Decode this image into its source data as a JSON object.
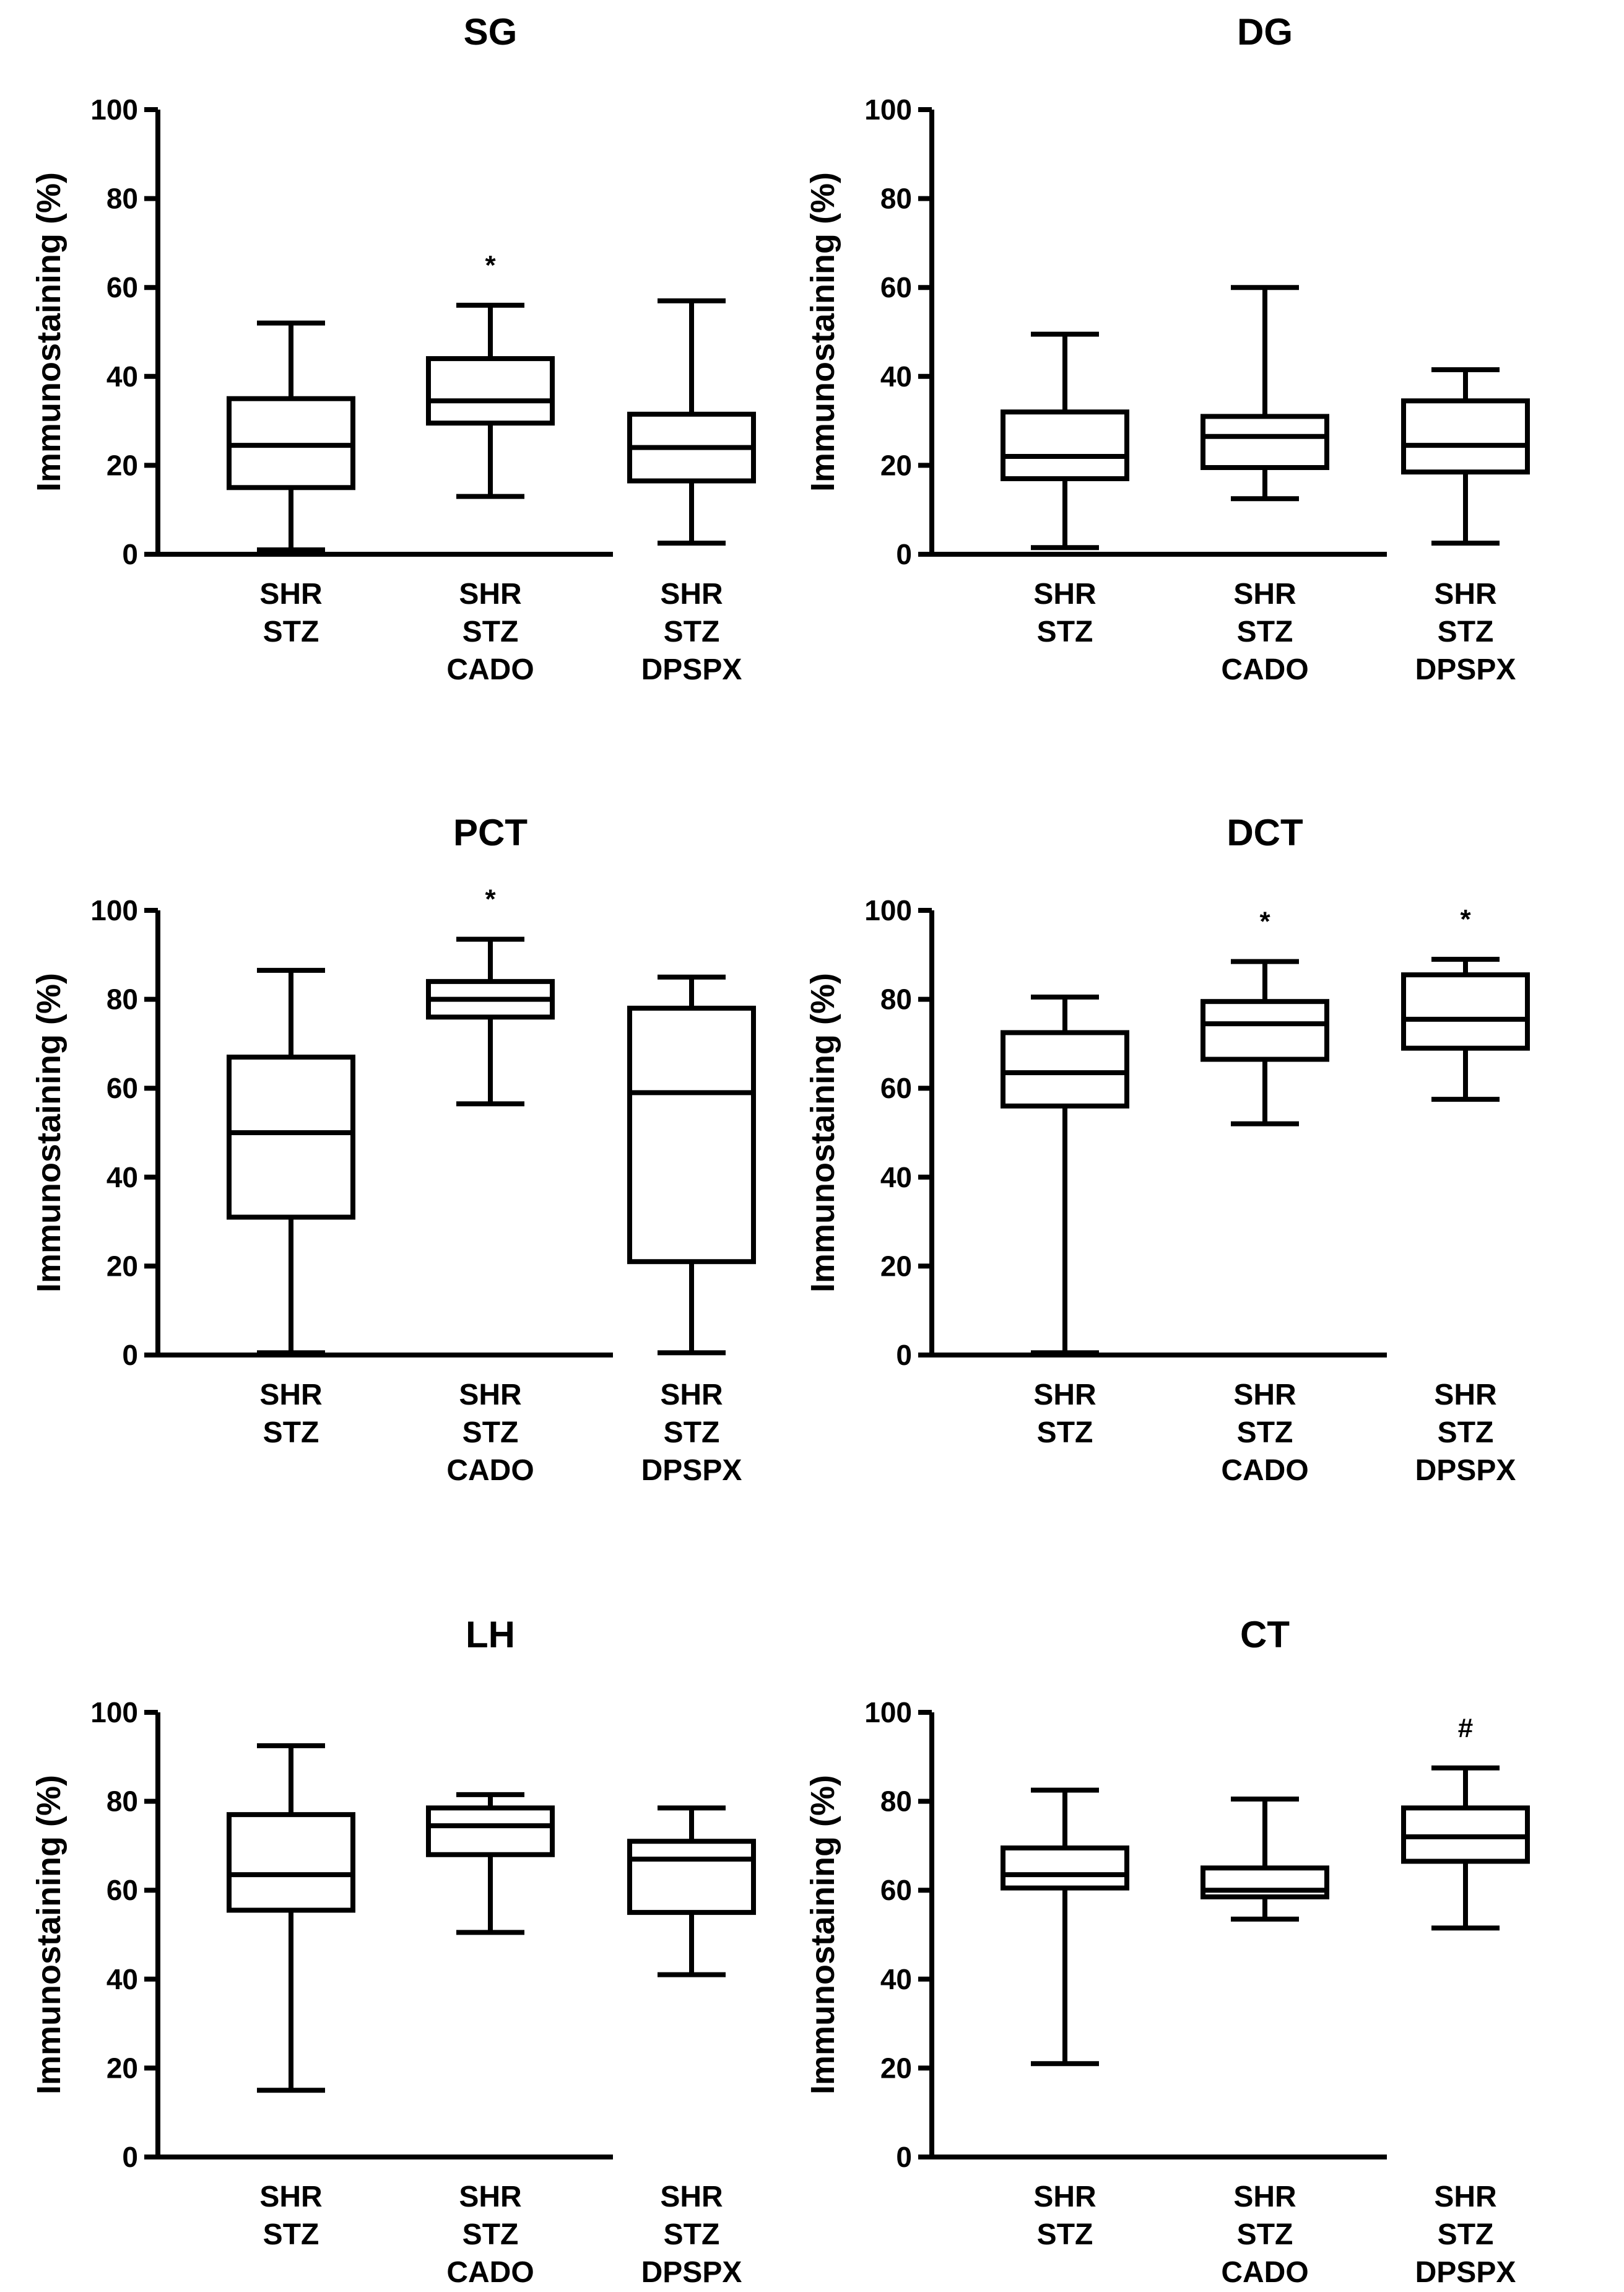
{
  "chart_data": [
    {
      "type": "boxplot",
      "title": "SG",
      "ylabel": "Immunostaining (%)",
      "ylim": [
        0,
        100
      ],
      "yticks": [
        0,
        20,
        40,
        60,
        80,
        100
      ],
      "categories": [
        [
          "SHR",
          "STZ"
        ],
        [
          "SHR",
          "STZ",
          "CADO"
        ],
        [
          "SHR",
          "STZ",
          "DPSPX"
        ]
      ],
      "boxes": [
        {
          "min": 1,
          "q1": 15,
          "median": 24.5,
          "q3": 35,
          "max": 52,
          "marker": ""
        },
        {
          "min": 13,
          "q1": 29.5,
          "median": 34.5,
          "q3": 44,
          "max": 56,
          "marker": "*"
        },
        {
          "min": 2.5,
          "q1": 16.5,
          "median": 24,
          "q3": 31.5,
          "max": 57,
          "marker": ""
        }
      ]
    },
    {
      "type": "boxplot",
      "title": "DG",
      "ylabel": "Immunostaining (%)",
      "ylim": [
        0,
        100
      ],
      "yticks": [
        0,
        20,
        40,
        60,
        80,
        100
      ],
      "categories": [
        [
          "SHR",
          "STZ"
        ],
        [
          "SHR",
          "STZ",
          "CADO"
        ],
        [
          "SHR",
          "STZ",
          "DPSPX"
        ]
      ],
      "boxes": [
        {
          "min": 1.5,
          "q1": 17,
          "median": 22,
          "q3": 32,
          "max": 49.5,
          "marker": ""
        },
        {
          "min": 12.5,
          "q1": 19.5,
          "median": 26.5,
          "q3": 31,
          "max": 60,
          "marker": ""
        },
        {
          "min": 2.5,
          "q1": 18.5,
          "median": 24.5,
          "q3": 34.5,
          "max": 41.5,
          "marker": ""
        }
      ]
    },
    {
      "type": "boxplot",
      "title": "PCT",
      "ylabel": "Immunostaining (%)",
      "ylim": [
        0,
        100
      ],
      "yticks": [
        0,
        20,
        40,
        60,
        80,
        100
      ],
      "categories": [
        [
          "SHR",
          "STZ"
        ],
        [
          "SHR",
          "STZ",
          "CADO"
        ],
        [
          "SHR",
          "STZ",
          "DPSPX"
        ]
      ],
      "boxes": [
        {
          "min": 0.5,
          "q1": 31,
          "median": 50,
          "q3": 67,
          "max": 86.5,
          "marker": ""
        },
        {
          "min": 56.5,
          "q1": 76,
          "median": 80,
          "q3": 84,
          "max": 93.5,
          "marker": "*"
        },
        {
          "min": 0.5,
          "q1": 21,
          "median": 59,
          "q3": 78,
          "max": 85,
          "marker": ""
        }
      ]
    },
    {
      "type": "boxplot",
      "title": "DCT",
      "ylabel": "Immunostaining (%)",
      "ylim": [
        0,
        100
      ],
      "yticks": [
        0,
        20,
        40,
        60,
        80,
        100
      ],
      "categories": [
        [
          "SHR",
          "STZ"
        ],
        [
          "SHR",
          "STZ",
          "CADO"
        ],
        [
          "SHR",
          "STZ",
          "DPSPX"
        ]
      ],
      "boxes": [
        {
          "min": 0.5,
          "q1": 56,
          "median": 63.5,
          "q3": 72.5,
          "max": 80.5,
          "marker": ""
        },
        {
          "min": 52,
          "q1": 66.5,
          "median": 74.5,
          "q3": 79.5,
          "max": 88.5,
          "marker": "*"
        },
        {
          "min": 57.5,
          "q1": 69,
          "median": 75.5,
          "q3": 85.5,
          "max": 89,
          "marker": "*"
        }
      ]
    },
    {
      "type": "boxplot",
      "title": "LH",
      "ylabel": "Immunostaining (%)",
      "ylim": [
        0,
        100
      ],
      "yticks": [
        0,
        20,
        40,
        60,
        80,
        100
      ],
      "categories": [
        [
          "SHR",
          "STZ"
        ],
        [
          "SHR",
          "STZ",
          "CADO"
        ],
        [
          "SHR",
          "STZ",
          "DPSPX"
        ]
      ],
      "boxes": [
        {
          "min": 15,
          "q1": 55.5,
          "median": 63.5,
          "q3": 77,
          "max": 92.5,
          "marker": ""
        },
        {
          "min": 50.5,
          "q1": 68,
          "median": 74.5,
          "q3": 78.5,
          "max": 81.5,
          "marker": ""
        },
        {
          "min": 41,
          "q1": 55,
          "median": 67,
          "q3": 71,
          "max": 78.5,
          "marker": ""
        }
      ]
    },
    {
      "type": "boxplot",
      "title": "CT",
      "ylabel": "Immunostaining (%)",
      "ylim": [
        0,
        100
      ],
      "yticks": [
        0,
        20,
        40,
        60,
        80,
        100
      ],
      "categories": [
        [
          "SHR",
          "STZ"
        ],
        [
          "SHR",
          "STZ",
          "CADO"
        ],
        [
          "SHR",
          "STZ",
          "DPSPX"
        ]
      ],
      "boxes": [
        {
          "min": 21,
          "q1": 60.5,
          "median": 63.5,
          "q3": 69.5,
          "max": 82.5,
          "marker": ""
        },
        {
          "min": 53.5,
          "q1": 58.5,
          "median": 60,
          "q3": 65,
          "max": 80.5,
          "marker": ""
        },
        {
          "min": 51.5,
          "q1": 66.5,
          "median": 72,
          "q3": 78.5,
          "max": 87.5,
          "marker": "#"
        }
      ]
    }
  ]
}
